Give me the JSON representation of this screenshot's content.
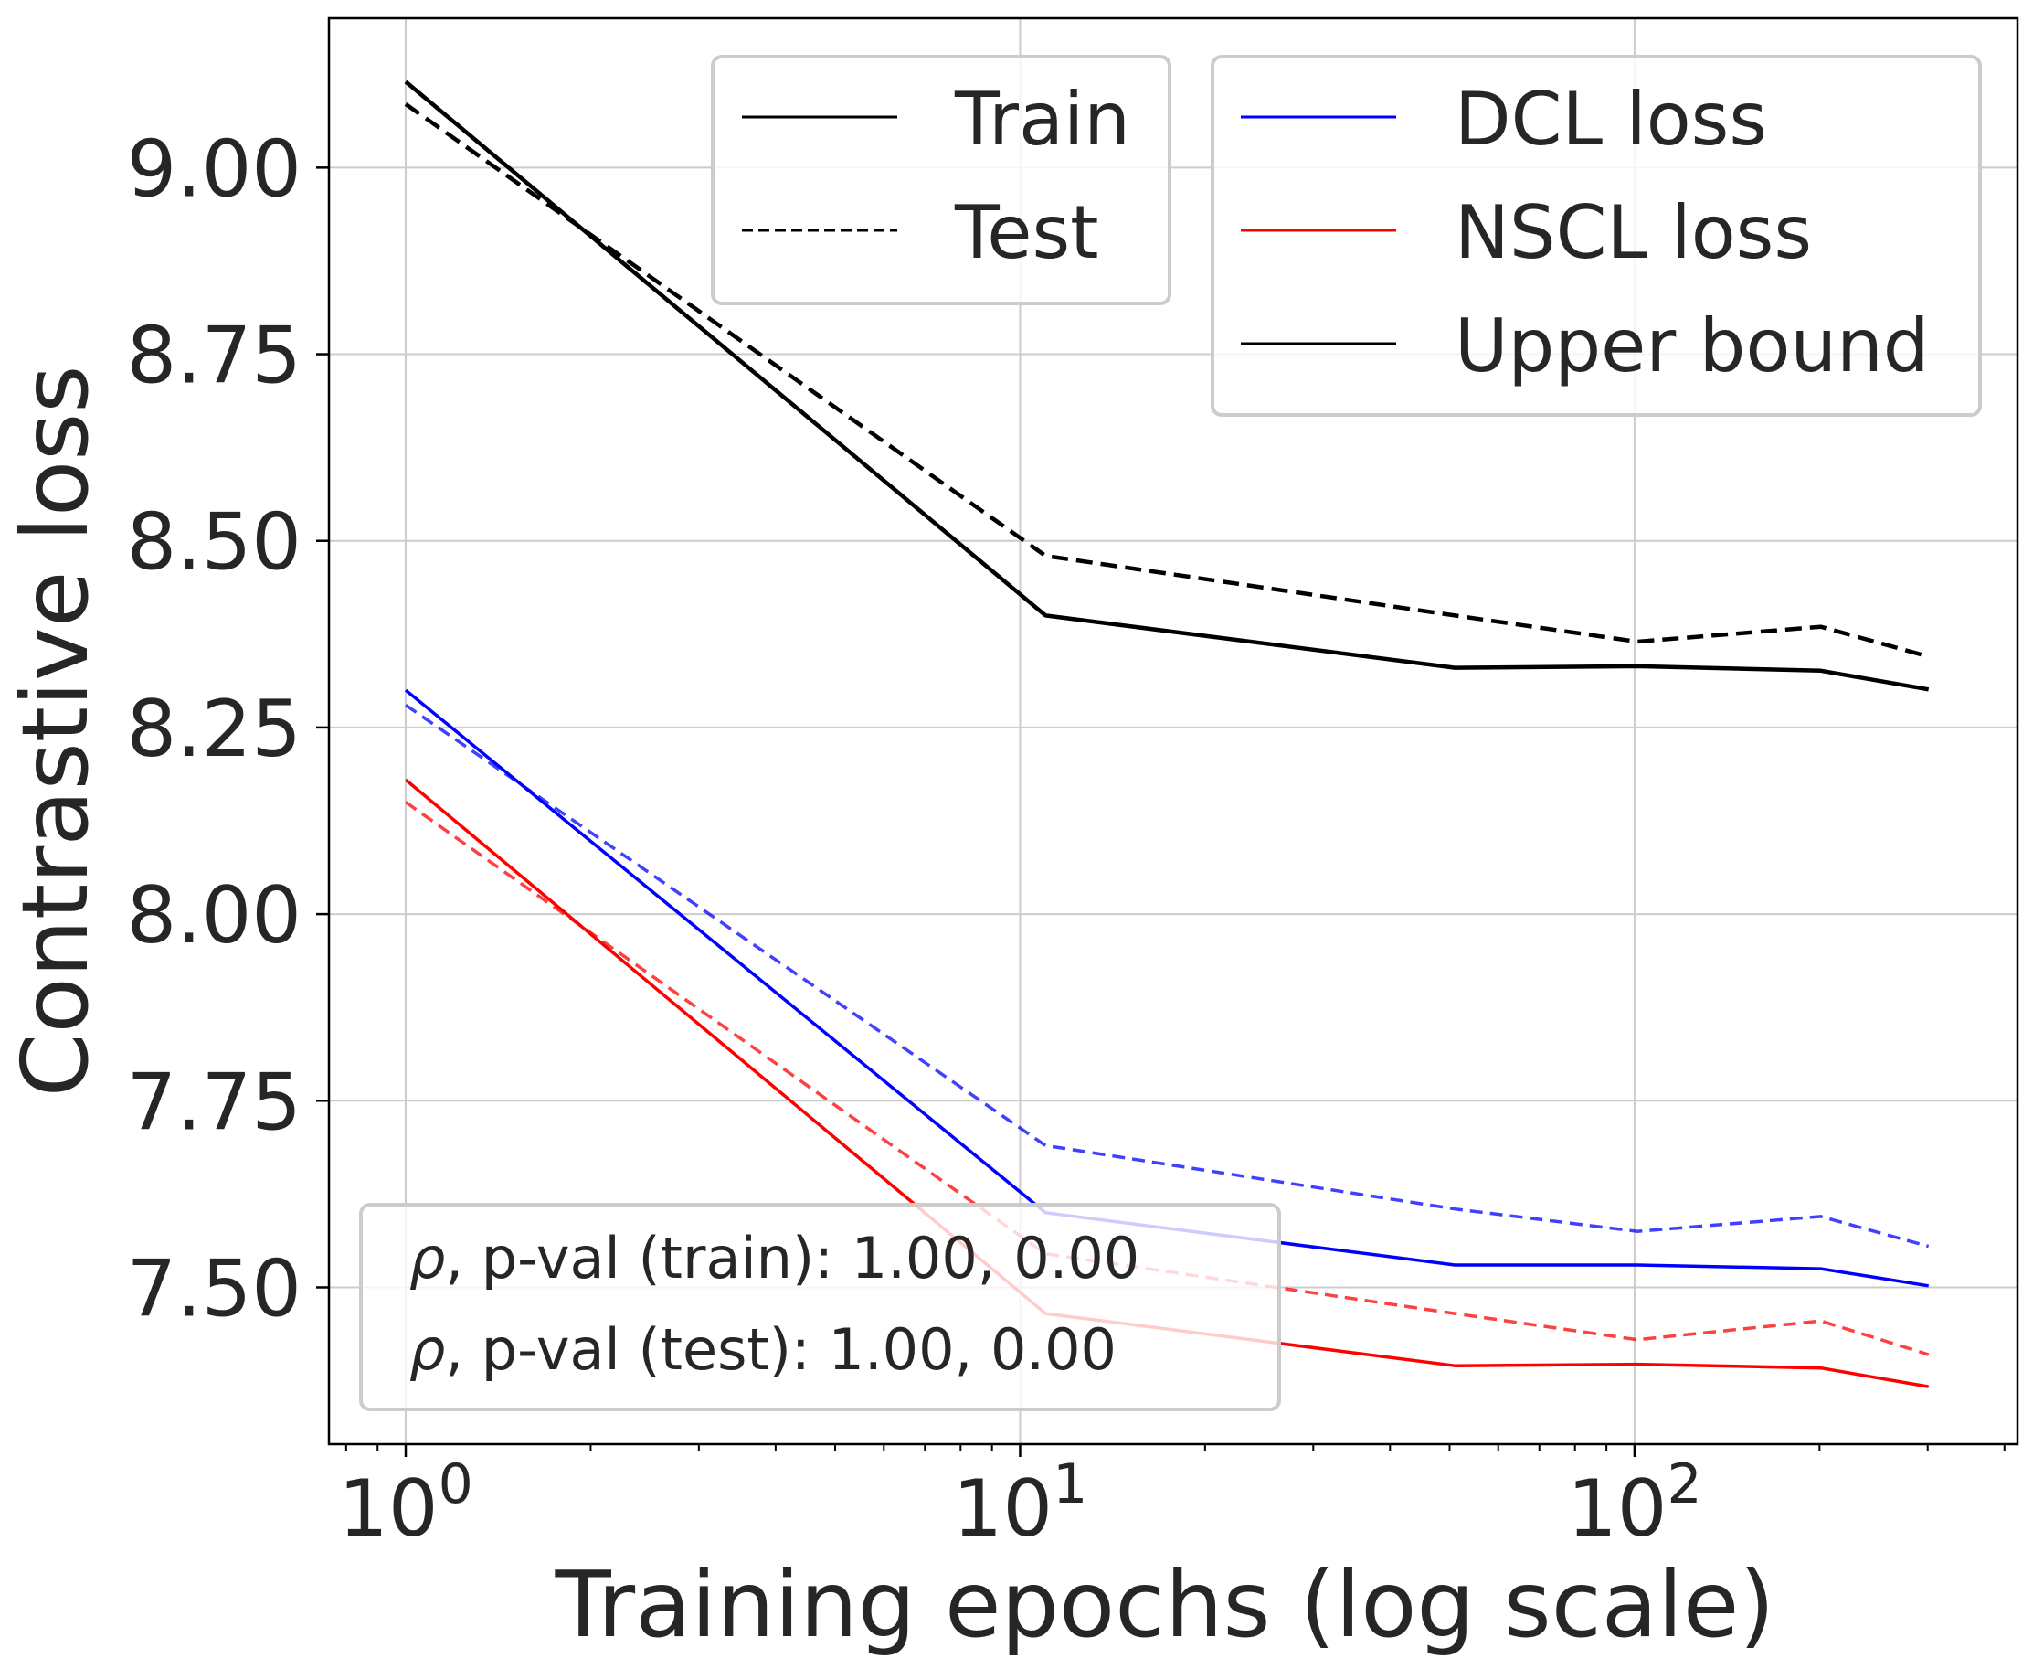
{
  "chart_data": {
    "type": "line",
    "title": "",
    "xlabel": "Training epochs (log scale)",
    "ylabel": "Contrastive loss",
    "xscale": "log",
    "xlim": [
      0.75,
      420
    ],
    "ylim": [
      7.29,
      9.2
    ],
    "grid": true,
    "x": [
      1,
      11,
      51,
      101,
      201,
      301
    ],
    "xticks": [
      {
        "value": 1,
        "base": "10",
        "exp": "0"
      },
      {
        "value": 10,
        "base": "10",
        "exp": "1"
      },
      {
        "value": 100,
        "base": "10",
        "exp": "2"
      }
    ],
    "yticks": [
      {
        "value": 7.5,
        "label": "7.50"
      },
      {
        "value": 7.75,
        "label": "7.75"
      },
      {
        "value": 8.0,
        "label": "8.00"
      },
      {
        "value": 8.25,
        "label": "8.25"
      },
      {
        "value": 8.5,
        "label": "8.50"
      },
      {
        "value": 8.75,
        "label": "8.75"
      },
      {
        "value": 9.0,
        "label": "9.00"
      }
    ],
    "series": [
      {
        "name": "Upper bound (train)",
        "group": "Upper bound",
        "split": "Train",
        "color": "#000000",
        "opacity": 1.0,
        "values": [
          9.115,
          8.4,
          8.33,
          8.332,
          8.326,
          8.301
        ]
      },
      {
        "name": "Upper bound (test)",
        "group": "Upper bound",
        "split": "Test",
        "color": "#000000",
        "opacity": 1.0,
        "values": [
          9.085,
          8.48,
          8.4,
          8.365,
          8.385,
          8.345
        ]
      },
      {
        "name": "DCL loss (train)",
        "group": "DCL loss",
        "split": "Train",
        "color": "#0000ff",
        "opacity": 1.0,
        "values": [
          8.3,
          7.6,
          7.53,
          7.53,
          7.525,
          7.502
        ]
      },
      {
        "name": "DCL loss (test)",
        "group": "DCL loss",
        "split": "Test",
        "color": "#0000ff",
        "opacity": 0.75,
        "values": [
          8.28,
          7.69,
          7.605,
          7.575,
          7.595,
          7.555
        ]
      },
      {
        "name": "NSCL loss (train)",
        "group": "NSCL loss",
        "split": "Train",
        "color": "#ff0000",
        "opacity": 1.0,
        "values": [
          8.18,
          7.465,
          7.395,
          7.397,
          7.392,
          7.367
        ]
      },
      {
        "name": "NSCL loss (test)",
        "group": "NSCL loss",
        "split": "Test",
        "color": "#ff0000",
        "opacity": 0.75,
        "values": [
          8.15,
          7.545,
          7.465,
          7.43,
          7.455,
          7.41
        ]
      }
    ],
    "legend_style": {
      "location": "top-center",
      "entries": [
        {
          "label": "Train",
          "style": "solid",
          "color": "#000000"
        },
        {
          "label": "Test",
          "style": "dashed",
          "color": "#000000"
        }
      ]
    },
    "legend_method": {
      "location": "top-right",
      "entries": [
        {
          "label": "DCL loss",
          "style": "solid",
          "color": "#0000ff"
        },
        {
          "label": "NSCL loss",
          "style": "solid",
          "color": "#ff0000"
        },
        {
          "label": "Upper bound",
          "style": "solid",
          "color": "#000000"
        }
      ]
    },
    "annotation": {
      "location": "bottom-left",
      "lines": [
        {
          "symbol": "ρ",
          "text": ", p-val (train):  1.00, 0.00"
        },
        {
          "symbol": "ρ",
          "text": ", p-val (test):  1.00, 0.00"
        }
      ]
    }
  }
}
